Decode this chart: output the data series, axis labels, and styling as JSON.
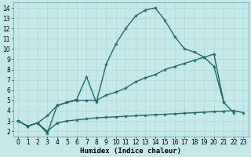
{
  "bg_color": "#c5e8e8",
  "grid_color": "#afd8d8",
  "line_color": "#1a6b6b",
  "marker": "*",
  "marker_size": 3,
  "line_width": 1.0,
  "xlabel": "Humidex (Indice chaleur)",
  "xlabel_fontsize": 6.5,
  "tick_fontsize": 5.5,
  "xlim": [
    -0.5,
    23.5
  ],
  "ylim": [
    1.5,
    14.5
  ],
  "yticks": [
    2,
    3,
    4,
    5,
    6,
    7,
    8,
    9,
    10,
    11,
    12,
    13,
    14
  ],
  "xticks": [
    0,
    1,
    2,
    3,
    4,
    5,
    6,
    7,
    8,
    9,
    10,
    11,
    12,
    13,
    14,
    15,
    16,
    17,
    18,
    19,
    20,
    21,
    22,
    23
  ],
  "line1_x": [
    0,
    1,
    2,
    3,
    4,
    5,
    6,
    7,
    8,
    9,
    10,
    11,
    12,
    13,
    14,
    15,
    16,
    17,
    18,
    19,
    20,
    21,
    22
  ],
  "line1_y": [
    3.0,
    2.5,
    2.8,
    1.8,
    4.5,
    4.8,
    5.1,
    7.3,
    4.8,
    8.5,
    10.5,
    12.0,
    13.2,
    13.8,
    14.0,
    12.8,
    11.2,
    10.0,
    9.7,
    9.2,
    8.3,
    4.8,
    3.8
  ],
  "line2_x": [
    0,
    1,
    2,
    3,
    4,
    5,
    6,
    7,
    8,
    9,
    10,
    11,
    12,
    13,
    14,
    15,
    16,
    17,
    18,
    19,
    20,
    21
  ],
  "line2_y": [
    3.0,
    2.5,
    2.8,
    3.5,
    4.5,
    4.8,
    5.0,
    5.0,
    5.0,
    5.5,
    5.8,
    6.2,
    6.8,
    7.2,
    7.5,
    8.0,
    8.3,
    8.6,
    8.9,
    9.2,
    9.5,
    4.8
  ],
  "line3_x": [
    0,
    1,
    2,
    3,
    4,
    5,
    6,
    7,
    8,
    9,
    10,
    11,
    12,
    13,
    14,
    15,
    16,
    17,
    18,
    19,
    20,
    21,
    22,
    23
  ],
  "line3_y": [
    3.0,
    2.5,
    2.8,
    2.0,
    2.8,
    3.0,
    3.1,
    3.2,
    3.3,
    3.35,
    3.4,
    3.45,
    3.5,
    3.55,
    3.6,
    3.65,
    3.7,
    3.75,
    3.8,
    3.85,
    3.9,
    3.95,
    4.0,
    3.8
  ]
}
